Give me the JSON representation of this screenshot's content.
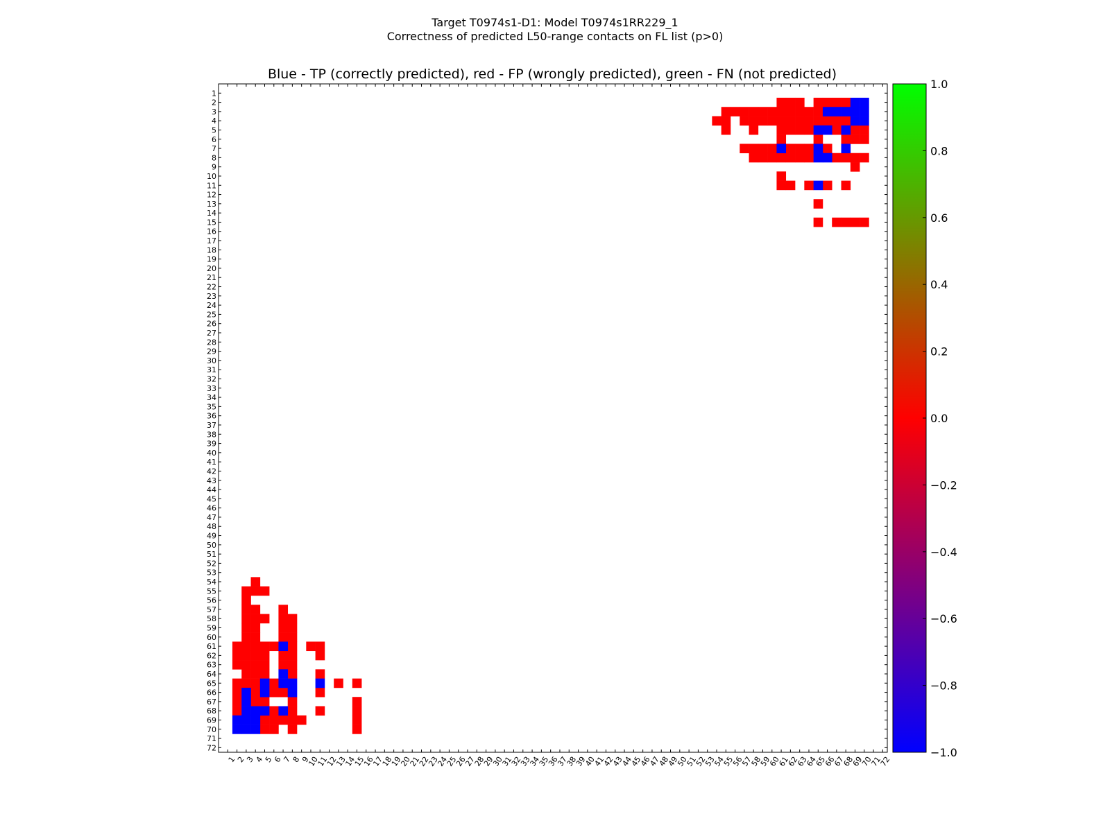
{
  "chart_data": {
    "type": "heatmap",
    "title_line1": "Target T0974s1-D1: Model T0974s1RR229_1",
    "title_line2": "Correctness of predicted L50-range contacts on FL list (p>0)",
    "axes_title": "Blue - TP (correctly predicted), red - FP (wrongly predicted), green - FN (not predicted)",
    "n_residues": 72,
    "x_ticks": [
      "1",
      "2",
      "3",
      "4",
      "5",
      "6",
      "7",
      "8",
      "9",
      "10",
      "11",
      "12",
      "13",
      "14",
      "15",
      "16",
      "17",
      "18",
      "19",
      "20",
      "21",
      "22",
      "23",
      "24",
      "25",
      "26",
      "27",
      "28",
      "29",
      "30",
      "31",
      "32",
      "33",
      "34",
      "35",
      "36",
      "37",
      "38",
      "39",
      "40",
      "41",
      "42",
      "43",
      "44",
      "45",
      "46",
      "47",
      "48",
      "49",
      "50",
      "51",
      "52",
      "53",
      "54",
      "55",
      "56",
      "57",
      "58",
      "59",
      "60",
      "61",
      "62",
      "63",
      "64",
      "65",
      "66",
      "67",
      "68",
      "69",
      "70",
      "71",
      "72"
    ],
    "y_ticks": [
      "1",
      "2",
      "3",
      "4",
      "5",
      "6",
      "7",
      "8",
      "9",
      "10",
      "11",
      "12",
      "13",
      "14",
      "15",
      "16",
      "17",
      "18",
      "19",
      "20",
      "21",
      "22",
      "23",
      "24",
      "25",
      "26",
      "27",
      "28",
      "29",
      "30",
      "31",
      "32",
      "33",
      "34",
      "35",
      "36",
      "37",
      "38",
      "39",
      "40",
      "41",
      "42",
      "43",
      "44",
      "45",
      "46",
      "47",
      "48",
      "49",
      "50",
      "51",
      "52",
      "53",
      "54",
      "55",
      "56",
      "57",
      "58",
      "59",
      "60",
      "61",
      "62",
      "63",
      "64",
      "65",
      "66",
      "67",
      "68",
      "69",
      "70",
      "71",
      "72"
    ],
    "colorbar": {
      "ticks": [
        "1.0",
        "0.8",
        "0.6",
        "0.4",
        "0.2",
        "0.0",
        "−0.2",
        "−0.4",
        "−0.6",
        "−0.8",
        "−1.0"
      ],
      "tick_values": [
        1.0,
        0.8,
        0.6,
        0.4,
        0.2,
        0.0,
        -0.2,
        -0.4,
        -0.6,
        -0.8,
        -1.0
      ],
      "range": [
        -1.0,
        1.0
      ],
      "colors": [
        "#0000ff",
        "#ff0000",
        "#00ff00"
      ]
    },
    "legend": {
      "tp": "Blue - TP (correctly predicted)",
      "fp": "red - FP (wrongly predicted)",
      "fn": "green - FN (not predicted)"
    },
    "value_map": {
      "tp": -1,
      "fp": 0,
      "fn": 1
    },
    "cells_tp": [
      [
        2,
        69
      ],
      [
        2,
        70
      ],
      [
        3,
        66
      ],
      [
        3,
        67
      ],
      [
        3,
        68
      ],
      [
        3,
        69
      ],
      [
        3,
        70
      ],
      [
        4,
        69
      ],
      [
        4,
        70
      ],
      [
        5,
        65
      ],
      [
        5,
        66
      ],
      [
        5,
        68
      ],
      [
        7,
        61
      ],
      [
        7,
        65
      ],
      [
        7,
        68
      ],
      [
        8,
        65
      ],
      [
        8,
        66
      ],
      [
        11,
        65
      ],
      [
        61,
        7
      ],
      [
        64,
        7
      ],
      [
        65,
        5
      ],
      [
        65,
        7
      ],
      [
        65,
        8
      ],
      [
        65,
        11
      ],
      [
        66,
        3
      ],
      [
        66,
        5
      ],
      [
        66,
        8
      ],
      [
        67,
        3
      ],
      [
        68,
        3
      ],
      [
        68,
        4
      ],
      [
        68,
        5
      ],
      [
        68,
        7
      ],
      [
        69,
        2
      ],
      [
        69,
        3
      ],
      [
        69,
        4
      ],
      [
        70,
        2
      ],
      [
        70,
        3
      ],
      [
        70,
        4
      ]
    ],
    "cells_fp": [
      [
        2,
        61
      ],
      [
        2,
        62
      ],
      [
        2,
        63
      ],
      [
        2,
        65
      ],
      [
        2,
        66
      ],
      [
        2,
        67
      ],
      [
        2,
        68
      ],
      [
        3,
        55
      ],
      [
        3,
        56
      ],
      [
        3,
        57
      ],
      [
        3,
        58
      ],
      [
        3,
        59
      ],
      [
        3,
        60
      ],
      [
        3,
        61
      ],
      [
        3,
        62
      ],
      [
        3,
        63
      ],
      [
        3,
        64
      ],
      [
        3,
        65
      ],
      [
        4,
        54
      ],
      [
        4,
        55
      ],
      [
        4,
        57
      ],
      [
        4,
        58
      ],
      [
        4,
        59
      ],
      [
        4,
        60
      ],
      [
        4,
        61
      ],
      [
        4,
        62
      ],
      [
        4,
        63
      ],
      [
        4,
        64
      ],
      [
        4,
        65
      ],
      [
        4,
        66
      ],
      [
        4,
        67
      ],
      [
        4,
        68
      ],
      [
        5,
        55
      ],
      [
        5,
        58
      ],
      [
        5,
        61
      ],
      [
        5,
        62
      ],
      [
        5,
        63
      ],
      [
        5,
        64
      ],
      [
        5,
        67
      ],
      [
        5,
        69
      ],
      [
        5,
        70
      ],
      [
        6,
        61
      ],
      [
        6,
        65
      ],
      [
        6,
        68
      ],
      [
        6,
        69
      ],
      [
        6,
        70
      ],
      [
        7,
        57
      ],
      [
        7,
        58
      ],
      [
        7,
        59
      ],
      [
        7,
        60
      ],
      [
        7,
        62
      ],
      [
        7,
        63
      ],
      [
        7,
        64
      ],
      [
        7,
        66
      ],
      [
        8,
        58
      ],
      [
        8,
        59
      ],
      [
        8,
        60
      ],
      [
        8,
        61
      ],
      [
        8,
        62
      ],
      [
        8,
        63
      ],
      [
        8,
        64
      ],
      [
        8,
        67
      ],
      [
        8,
        68
      ],
      [
        8,
        69
      ],
      [
        8,
        70
      ],
      [
        9,
        69
      ],
      [
        10,
        61
      ],
      [
        11,
        61
      ],
      [
        11,
        62
      ],
      [
        11,
        64
      ],
      [
        11,
        66
      ],
      [
        11,
        68
      ],
      [
        13,
        65
      ],
      [
        15,
        65
      ],
      [
        15,
        67
      ],
      [
        15,
        68
      ],
      [
        15,
        69
      ],
      [
        15,
        70
      ],
      [
        54,
        4
      ],
      [
        55,
        3
      ],
      [
        55,
        4
      ],
      [
        55,
        5
      ],
      [
        56,
        3
      ],
      [
        57,
        3
      ],
      [
        57,
        4
      ],
      [
        57,
        7
      ],
      [
        58,
        3
      ],
      [
        58,
        4
      ],
      [
        58,
        5
      ],
      [
        58,
        7
      ],
      [
        58,
        8
      ],
      [
        59,
        3
      ],
      [
        59,
        4
      ],
      [
        59,
        7
      ],
      [
        59,
        8
      ],
      [
        60,
        3
      ],
      [
        60,
        4
      ],
      [
        60,
        7
      ],
      [
        60,
        8
      ],
      [
        61,
        2
      ],
      [
        61,
        3
      ],
      [
        61,
        4
      ],
      [
        61,
        5
      ],
      [
        61,
        6
      ],
      [
        61,
        8
      ],
      [
        61,
        10
      ],
      [
        61,
        11
      ],
      [
        62,
        2
      ],
      [
        62,
        3
      ],
      [
        62,
        4
      ],
      [
        62,
        5
      ],
      [
        62,
        7
      ],
      [
        62,
        8
      ],
      [
        62,
        11
      ],
      [
        63,
        2
      ],
      [
        63,
        3
      ],
      [
        63,
        4
      ],
      [
        63,
        5
      ],
      [
        63,
        7
      ],
      [
        63,
        8
      ],
      [
        64,
        3
      ],
      [
        64,
        4
      ],
      [
        64,
        5
      ],
      [
        64,
        8
      ],
      [
        64,
        11
      ],
      [
        65,
        2
      ],
      [
        65,
        3
      ],
      [
        65,
        4
      ],
      [
        65,
        6
      ],
      [
        65,
        13
      ],
      [
        65,
        15
      ],
      [
        66,
        2
      ],
      [
        66,
        4
      ],
      [
        66,
        6
      ],
      [
        66,
        7
      ],
      [
        66,
        11
      ],
      [
        67,
        2
      ],
      [
        67,
        4
      ],
      [
        67,
        5
      ],
      [
        67,
        8
      ],
      [
        67,
        15
      ],
      [
        68,
        2
      ],
      [
        68,
        6
      ],
      [
        68,
        8
      ],
      [
        68,
        11
      ],
      [
        68,
        15
      ],
      [
        69,
        5
      ],
      [
        69,
        6
      ],
      [
        69,
        7
      ],
      [
        69,
        8
      ],
      [
        69,
        9
      ],
      [
        69,
        15
      ],
      [
        70,
        5
      ],
      [
        70,
        6
      ],
      [
        70,
        8
      ],
      [
        70,
        15
      ]
    ],
    "cells_fn": []
  }
}
